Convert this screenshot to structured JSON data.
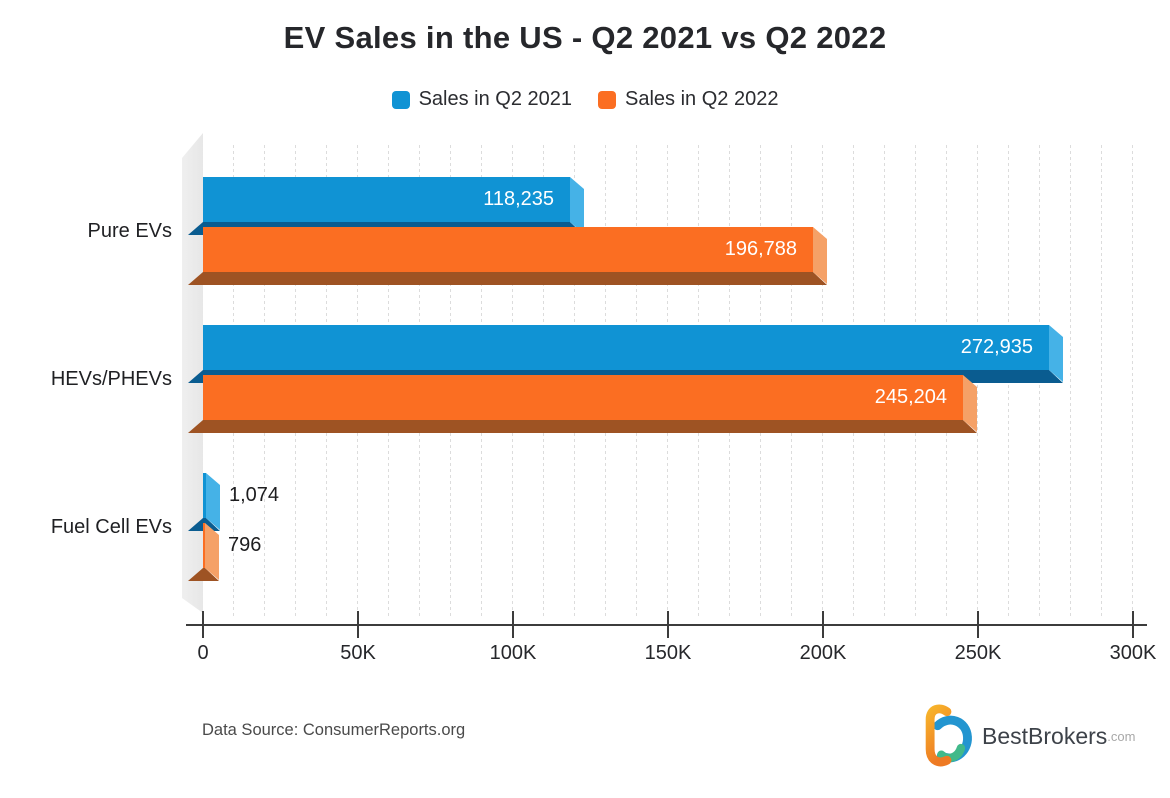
{
  "title": "EV Sales in the US - Q2 2021 vs Q2 2022",
  "legend": [
    {
      "label": "Sales in Q2 2021",
      "color": "#1093d4"
    },
    {
      "label": "Sales in Q2 2022",
      "color": "#fb6e22"
    }
  ],
  "chart_data": {
    "type": "bar",
    "orientation": "horizontal",
    "title": "EV Sales in the US - Q2 2021 vs Q2 2022",
    "categories": [
      "Pure EVs",
      "HEVs/PHEVs",
      "Fuel Cell EVs"
    ],
    "series": [
      {
        "name": "Sales in Q2 2021",
        "color": "#1093d4",
        "bevel_color": "#45b2e7",
        "shade_color": "#0a5c90",
        "values": [
          118235,
          272935,
          1074
        ],
        "labels": [
          "118,235",
          "272,935",
          "1,074"
        ]
      },
      {
        "name": "Sales in Q2 2022",
        "color": "#fb6e22",
        "bevel_color": "#f5a167",
        "shade_color": "#9e5323",
        "values": [
          196788,
          245204,
          796
        ],
        "labels": [
          "196,788",
          "245,204",
          "796"
        ]
      }
    ],
    "xlabel": "",
    "ylabel": "",
    "xlim": [
      0,
      300000
    ],
    "x_ticks": [
      "0",
      "50K",
      "100K",
      "150K",
      "200K",
      "250K",
      "300K"
    ],
    "grid": true,
    "legend_position": "top"
  },
  "footer": {
    "source": "Data Source: ConsumerReports.org",
    "brand": "BestBrokers",
    "brand_suffix": ".com"
  }
}
